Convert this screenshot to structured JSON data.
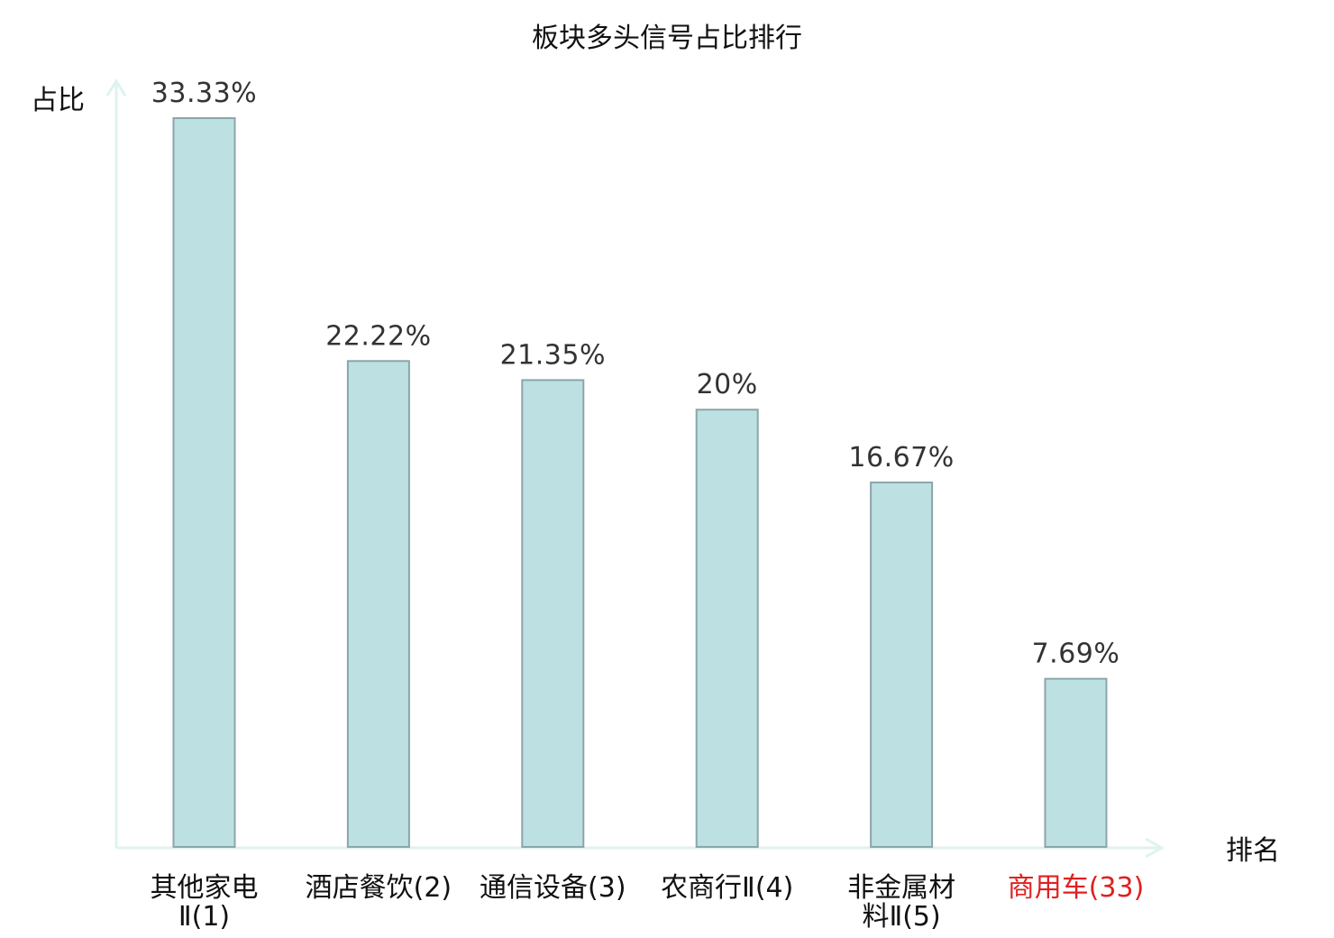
{
  "chart_data": {
    "type": "bar",
    "title": "板块多头信号占比排行",
    "ylabel": "占比",
    "xlabel": "排名",
    "categories": [
      {
        "lines": [
          "其他家电",
          "Ⅱ(1)"
        ],
        "highlight": false
      },
      {
        "lines": [
          "酒店餐饮(2)"
        ],
        "highlight": false
      },
      {
        "lines": [
          "通信设备(3)"
        ],
        "highlight": false
      },
      {
        "lines": [
          "农商行Ⅱ(4)"
        ],
        "highlight": false
      },
      {
        "lines": [
          "非金属材",
          "料Ⅱ(5)"
        ],
        "highlight": false
      },
      {
        "lines": [
          "商用车(33)"
        ],
        "highlight": true
      }
    ],
    "values": [
      33.33,
      22.22,
      21.35,
      20,
      16.67,
      7.69
    ],
    "value_labels": [
      "33.33%",
      "22.22%",
      "21.35%",
      "20%",
      "16.67%",
      "7.69%"
    ],
    "ylim": [
      0,
      33.33
    ],
    "grid": false,
    "colors": {
      "bar_fill": "#bde0e3",
      "bar_stroke": "#8aa6a8",
      "axis": "#dff2ef",
      "label": "#111111",
      "highlight": "#e02020"
    }
  }
}
